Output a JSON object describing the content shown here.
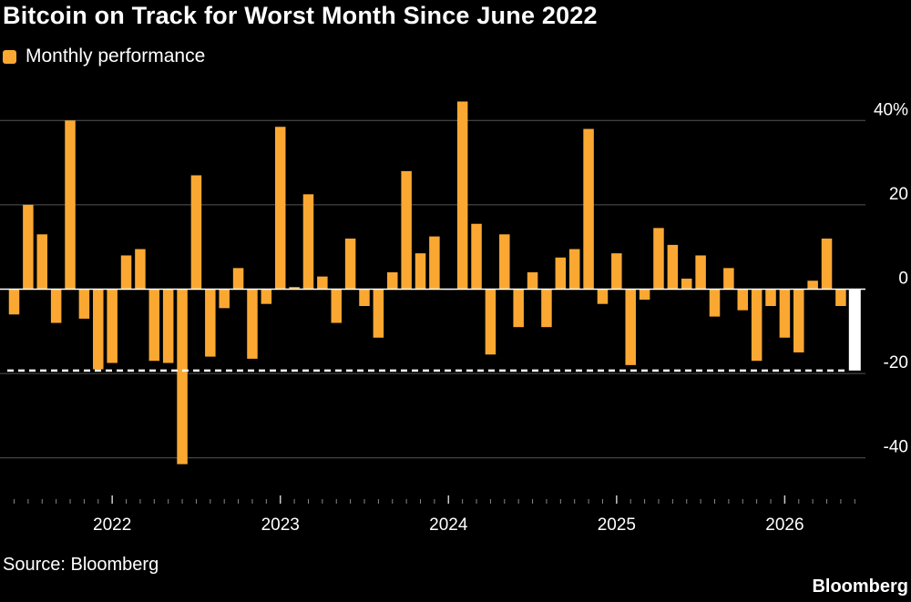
{
  "title": "Bitcoin on Track for Worst Month Since June 2022",
  "source": "Source: Bloomberg",
  "brand": "Bloomberg",
  "colors": {
    "background": "#000000",
    "bar": "#FBA833",
    "current_bar": "#FFFFFF",
    "grid": "#555555",
    "text": "#FFFFFF",
    "reference_line": "#FFFFFF"
  },
  "chart_data": {
    "type": "bar",
    "title": "Bitcoin on Track for Worst Month Since June 2022",
    "xlabel": "",
    "ylabel": "",
    "ylim": [
      -45,
      45
    ],
    "grid": true,
    "legend": "top-left",
    "y_ticks": [
      {
        "value": 40,
        "label": "40%"
      },
      {
        "value": 20,
        "label": "20"
      },
      {
        "value": 0,
        "label": "0"
      },
      {
        "value": -20,
        "label": "-20"
      },
      {
        "value": -40,
        "label": "-40"
      }
    ],
    "x_tick_labels": [
      {
        "label": "2022",
        "month": "2022-01"
      },
      {
        "label": "2023",
        "month": "2023-01"
      },
      {
        "label": "2024",
        "month": "2024-01"
      },
      {
        "label": "2025",
        "month": "2025-01"
      },
      {
        "label": "2026",
        "month": "2026-01"
      }
    ],
    "reference_line": {
      "value": -19.3,
      "style": "dashed"
    },
    "series": [
      {
        "name": "Monthly performance",
        "highlight_last": true,
        "months": [
          "2021-06",
          "2021-07",
          "2021-08",
          "2021-09",
          "2021-10",
          "2021-11",
          "2021-12",
          "2022-01",
          "2022-02",
          "2022-03",
          "2022-04",
          "2022-05",
          "2022-06",
          "2022-07",
          "2022-08",
          "2022-09",
          "2022-10",
          "2022-11",
          "2022-12",
          "2023-01",
          "2023-02",
          "2023-03",
          "2023-04",
          "2023-05",
          "2023-06",
          "2023-07",
          "2023-08",
          "2023-09",
          "2023-10",
          "2023-11",
          "2023-12",
          "2024-01",
          "2024-02",
          "2024-03",
          "2024-04",
          "2024-05",
          "2024-06",
          "2024-07",
          "2024-08",
          "2024-09",
          "2024-10",
          "2024-11",
          "2024-12",
          "2025-01",
          "2025-02",
          "2025-03",
          "2025-04",
          "2025-05",
          "2025-06",
          "2025-07",
          "2025-08",
          "2025-09",
          "2025-10",
          "2025-11",
          "2025-12",
          "2026-01",
          "2026-02",
          "2026-03",
          "2026-04",
          "2026-05",
          "2026-06"
        ],
        "values": [
          -6,
          20,
          13,
          -8,
          40,
          -7,
          -19,
          -17.5,
          8,
          9.5,
          -17,
          -17.5,
          -41.5,
          27,
          -16,
          -4.5,
          5,
          -16.5,
          -3.5,
          38.5,
          0.5,
          22.5,
          3,
          -8,
          12,
          -4,
          -11.5,
          4,
          28,
          8.5,
          12.5,
          0,
          44.5,
          15.5,
          -15.5,
          13,
          -9,
          4,
          -9,
          7.5,
          9.5,
          38,
          -3.5,
          8.5,
          -18,
          -2.5,
          14.5,
          10.5,
          2.5,
          8,
          -6.5,
          5,
          -5,
          -17,
          -4,
          -11.5,
          -15,
          2,
          12,
          -4,
          -19.3
        ]
      }
    ]
  }
}
